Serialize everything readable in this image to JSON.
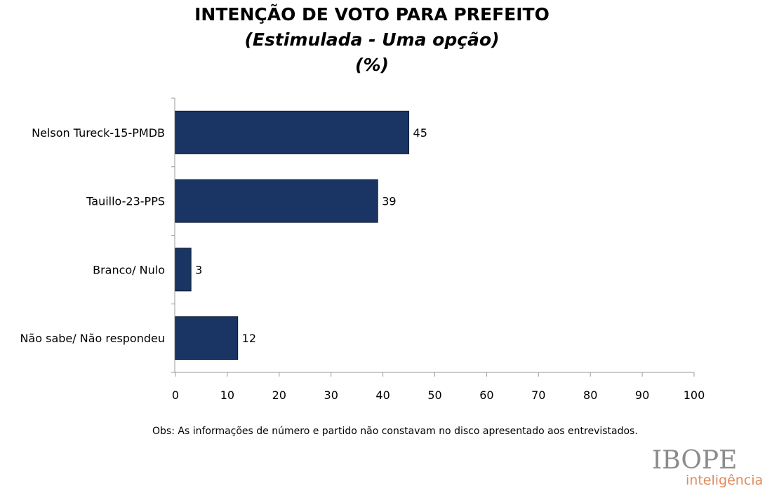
{
  "chart_data": {
    "type": "bar",
    "orientation": "horizontal",
    "title": "INTENÇÃO DE VOTO PARA PREFEITO",
    "subtitle": "(Estimulada - Uma opção)",
    "unit_label": "(%)",
    "categories": [
      "Nelson Tureck-15-PMDB",
      "Tauillo-23-PPS",
      "Branco/ Nulo",
      "Não sabe/ Não respondeu"
    ],
    "values": [
      45,
      39,
      3,
      12
    ],
    "xlim": [
      0,
      100
    ],
    "xticks": [
      0,
      10,
      20,
      30,
      40,
      50,
      60,
      70,
      80,
      90,
      100
    ],
    "grid": false,
    "bar_color": "#1a3563"
  },
  "note": "Obs: As informações de número e partido não constavam no disco apresentado aos entrevistados.",
  "logo": {
    "brand": "IBOPE",
    "tagline": "inteligência"
  }
}
